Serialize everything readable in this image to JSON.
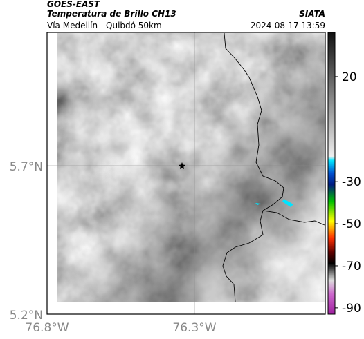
{
  "header": {
    "title": "GOES-EAST",
    "subtitle": "Temperatura de Brillo CH13",
    "location": "Vía Medellín - Quibdó 50km",
    "source": "SIATA",
    "timestamp": "2024-08-17 13:59"
  },
  "map": {
    "lat_labels": [
      "5.7°N",
      "5.2°N"
    ],
    "lon_labels": [
      "76.8°W",
      "76.3°W"
    ]
  },
  "colorbar": {
    "lim": [
      41,
      -93
    ],
    "ticks": [
      20,
      -30,
      -50,
      -70,
      -90
    ]
  }
}
